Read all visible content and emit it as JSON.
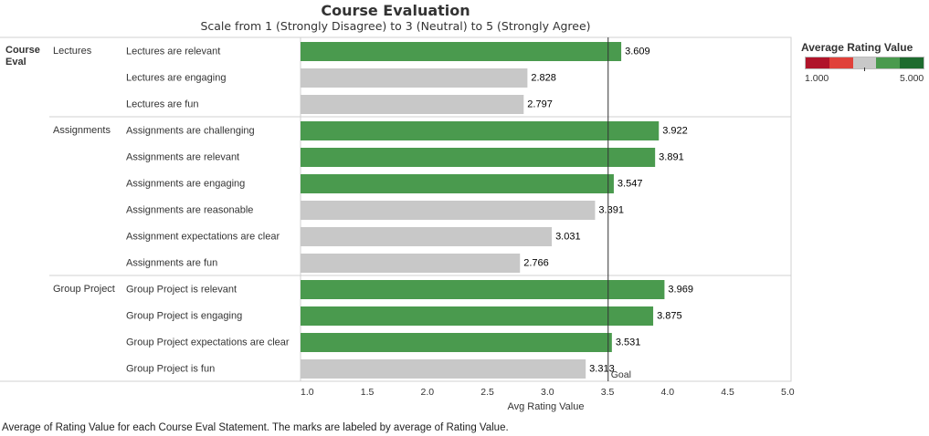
{
  "title": "Course Evaluation",
  "subtitle": "Scale from 1 (Strongly Disagree) to 3 (Neutral) to 5 (Strongly Agree)",
  "caption": "Average of Rating Value for each Course Eval Statement.  The marks are labeled by average of Rating Value.",
  "legend": {
    "title": "Average Rating Value",
    "min_label": "1.000",
    "max_label": "5.000",
    "colors": [
      "#b0142a",
      "#e0413a",
      "#c8c8c8",
      "#4a9a4e",
      "#1e6b2e"
    ]
  },
  "colors": {
    "above_goal": "#4a9a4e",
    "below_goal": "#c8c8c8",
    "goal_line": "#333333",
    "grid": "#d0d0d0"
  },
  "chart_data": {
    "type": "bar",
    "orientation": "horizontal",
    "row_header": "Course Eval",
    "xlabel": "Avg Rating Value",
    "xlim": [
      1.0,
      5.0
    ],
    "xticks": [
      "1.0",
      "1.5",
      "2.0",
      "2.5",
      "3.0",
      "3.5",
      "4.0",
      "4.5",
      "5.0"
    ],
    "goal": {
      "value": 3.5,
      "label": "Goal"
    },
    "groups": [
      {
        "name": "Lectures",
        "items": [
          {
            "label": "Lectures are relevant",
            "value": 3.609,
            "value_label": "3.609"
          },
          {
            "label": "Lectures are engaging",
            "value": 2.828,
            "value_label": "2.828"
          },
          {
            "label": "Lectures are fun",
            "value": 2.797,
            "value_label": "2.797"
          }
        ]
      },
      {
        "name": "Assignments",
        "items": [
          {
            "label": "Assignments are challenging",
            "value": 3.922,
            "value_label": "3.922"
          },
          {
            "label": "Assignments are relevant",
            "value": 3.891,
            "value_label": "3.891"
          },
          {
            "label": "Assignments are engaging",
            "value": 3.547,
            "value_label": "3.547"
          },
          {
            "label": "Assignments are reasonable",
            "value": 3.391,
            "value_label": "3.391"
          },
          {
            "label": "Assignment expectations are clear",
            "value": 3.031,
            "value_label": "3.031"
          },
          {
            "label": "Assignments are fun",
            "value": 2.766,
            "value_label": "2.766"
          }
        ]
      },
      {
        "name": "Group Project",
        "items": [
          {
            "label": "Group Project is relevant",
            "value": 3.969,
            "value_label": "3.969"
          },
          {
            "label": "Group Project is engaging",
            "value": 3.875,
            "value_label": "3.875"
          },
          {
            "label": "Group Project expectations are clear",
            "value": 3.531,
            "value_label": "3.531"
          },
          {
            "label": "Group Project is fun",
            "value": 3.313,
            "value_label": "3.313"
          }
        ]
      }
    ]
  }
}
